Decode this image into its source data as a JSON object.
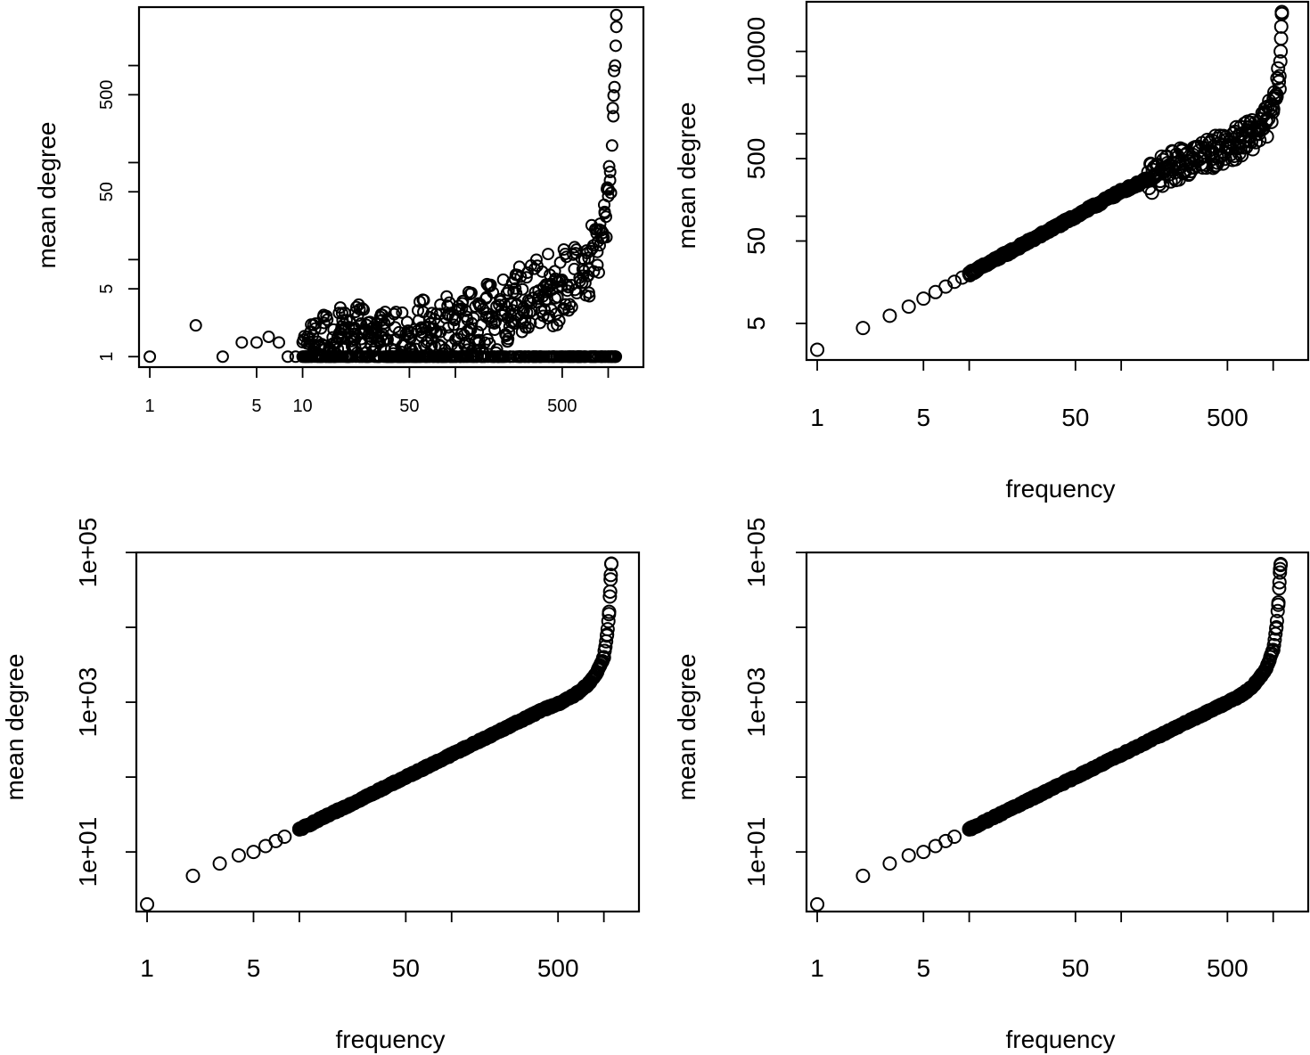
{
  "figure": {
    "layout": "2x2 grid"
  },
  "chart_data": [
    {
      "id": "top-left",
      "type": "scatter",
      "title": "",
      "xlabel": "",
      "ylabel": "mean degree",
      "x_scale": "log",
      "y_scale": "log",
      "xlim": [
        0.85,
        1700
      ],
      "ylim": [
        0.78,
        4000
      ],
      "x_ticks": [
        1,
        5,
        10,
        50,
        100,
        500,
        1000
      ],
      "x_tick_labels": [
        "1",
        "5",
        "10",
        "50",
        "",
        "500",
        ""
      ],
      "y_ticks": [
        1,
        5,
        10,
        50,
        100,
        500,
        1000
      ],
      "y_tick_labels": [
        "1",
        "5",
        "",
        "50",
        "",
        "500",
        ""
      ],
      "points": [
        [
          1,
          1
        ],
        [
          2,
          2.1
        ],
        [
          3,
          1
        ],
        [
          4,
          1.4
        ],
        [
          5,
          1.4
        ],
        [
          6,
          1.6
        ],
        [
          7,
          1.4
        ],
        [
          8,
          1
        ],
        [
          9,
          1
        ],
        [
          10,
          1
        ],
        [
          11,
          1
        ],
        [
          12,
          1.2
        ],
        [
          13,
          1
        ],
        [
          14,
          1.3
        ],
        [
          15,
          1
        ],
        [
          16,
          1
        ],
        [
          17,
          1.2
        ],
        [
          18,
          1.6
        ],
        [
          19,
          2
        ],
        [
          20,
          1
        ],
        [
          22,
          1.5
        ],
        [
          24,
          1.8
        ],
        [
          26,
          1.1
        ],
        [
          28,
          1.6
        ],
        [
          30,
          1
        ],
        [
          32,
          1.4
        ],
        [
          34,
          2
        ],
        [
          36,
          1.5
        ],
        [
          38,
          1.2
        ],
        [
          40,
          1.5
        ],
        [
          45,
          1.3
        ],
        [
          50,
          1.6
        ],
        [
          55,
          1.2
        ],
        [
          60,
          2
        ],
        [
          70,
          1.3
        ],
        [
          80,
          1.8
        ],
        [
          90,
          2
        ],
        [
          100,
          1.5
        ],
        [
          120,
          2.4
        ],
        [
          140,
          1.8
        ],
        [
          160,
          2.8
        ],
        [
          180,
          2.2
        ],
        [
          200,
          3
        ],
        [
          220,
          2.5
        ],
        [
          250,
          4.5
        ],
        [
          280,
          3.2
        ],
        [
          300,
          3.8
        ],
        [
          350,
          4.8
        ],
        [
          400,
          5.5
        ],
        [
          450,
          4
        ],
        [
          500,
          6
        ],
        [
          550,
          5.2
        ],
        [
          600,
          8
        ],
        [
          650,
          6.5
        ],
        [
          700,
          10
        ],
        [
          750,
          8
        ],
        [
          800,
          14
        ],
        [
          850,
          12
        ],
        [
          900,
          20
        ],
        [
          950,
          30
        ],
        [
          1000,
          45
        ],
        [
          1030,
          80
        ],
        [
          1060,
          150
        ],
        [
          1080,
          300
        ],
        [
          1100,
          600
        ],
        [
          1110,
          1000
        ],
        [
          1120,
          1600
        ],
        [
          1130,
          2500
        ]
      ]
    },
    {
      "id": "top-right",
      "type": "scatter",
      "title": "",
      "xlabel": "frequency",
      "ylabel": "mean degree",
      "x_scale": "log",
      "y_scale": "log",
      "xlim": [
        0.85,
        1700
      ],
      "ylim": [
        1.8,
        40000
      ],
      "x_ticks": [
        1,
        5,
        10,
        50,
        100,
        500,
        1000
      ],
      "x_tick_labels": [
        "1",
        "5",
        "",
        "50",
        "",
        "500",
        ""
      ],
      "y_ticks": [
        5,
        50,
        100,
        500,
        1000,
        5000,
        10000
      ],
      "y_tick_labels": [
        "5",
        "50",
        "",
        "500",
        "",
        "",
        "10000"
      ],
      "points": [
        [
          1,
          2.4
        ],
        [
          2,
          4.4
        ],
        [
          3,
          6.2
        ],
        [
          4,
          8
        ],
        [
          5,
          10
        ],
        [
          6,
          12
        ],
        [
          7,
          14
        ],
        [
          8,
          16
        ],
        [
          9,
          18
        ],
        [
          10,
          20
        ],
        [
          12,
          24
        ],
        [
          15,
          30
        ],
        [
          20,
          40
        ],
        [
          30,
          60
        ],
        [
          50,
          100
        ],
        [
          70,
          140
        ],
        [
          100,
          200
        ],
        [
          150,
          280
        ],
        [
          200,
          380
        ],
        [
          300,
          500
        ],
        [
          400,
          600
        ],
        [
          500,
          700
        ],
        [
          600,
          800
        ],
        [
          700,
          950
        ],
        [
          800,
          1100
        ],
        [
          900,
          1400
        ],
        [
          1000,
          2000
        ],
        [
          1050,
          3000
        ],
        [
          1100,
          5000
        ],
        [
          1120,
          10000
        ],
        [
          1130,
          20000
        ],
        [
          1140,
          30000
        ]
      ]
    },
    {
      "id": "bottom-left",
      "type": "scatter",
      "title": "",
      "xlabel": "frequency",
      "ylabel": "mean degree",
      "x_scale": "log",
      "y_scale": "log",
      "xlim": [
        0.85,
        1700
      ],
      "ylim": [
        1.6,
        100000
      ],
      "x_ticks": [
        1,
        5,
        10,
        50,
        100,
        500,
        1000
      ],
      "x_tick_labels": [
        "1",
        "5",
        "",
        "50",
        "",
        "500",
        ""
      ],
      "y_ticks": [
        10,
        100,
        1000,
        10000,
        100000
      ],
      "y_tick_labels": [
        "1e+01",
        "",
        "1e+03",
        "",
        "1e+05"
      ],
      "points": [
        [
          1,
          2
        ],
        [
          2,
          4.8
        ],
        [
          3,
          7
        ],
        [
          4,
          9
        ],
        [
          5,
          10
        ],
        [
          6,
          12
        ],
        [
          7,
          14
        ],
        [
          8,
          16
        ],
        [
          10,
          20
        ],
        [
          15,
          30
        ],
        [
          20,
          40
        ],
        [
          30,
          60
        ],
        [
          50,
          100
        ],
        [
          70,
          140
        ],
        [
          100,
          200
        ],
        [
          150,
          300
        ],
        [
          200,
          400
        ],
        [
          300,
          600
        ],
        [
          400,
          800
        ],
        [
          500,
          950
        ],
        [
          600,
          1150
        ],
        [
          700,
          1400
        ],
        [
          800,
          1800
        ],
        [
          900,
          2500
        ],
        [
          1000,
          4000
        ],
        [
          1050,
          8000
        ],
        [
          1080,
          15000
        ],
        [
          1100,
          30000
        ],
        [
          1110,
          50000
        ],
        [
          1120,
          70000
        ]
      ]
    },
    {
      "id": "bottom-right",
      "type": "scatter",
      "title": "",
      "xlabel": "frequency",
      "ylabel": "mean degree",
      "x_scale": "log",
      "y_scale": "log",
      "xlim": [
        0.85,
        1700
      ],
      "ylim": [
        1.6,
        100000
      ],
      "x_ticks": [
        1,
        5,
        10,
        50,
        100,
        500,
        1000
      ],
      "x_tick_labels": [
        "1",
        "5",
        "",
        "50",
        "",
        "500",
        ""
      ],
      "y_ticks": [
        10,
        100,
        1000,
        10000,
        100000
      ],
      "y_tick_labels": [
        "1e+01",
        "",
        "1e+03",
        "",
        "1e+05"
      ],
      "points": [
        [
          1,
          2
        ],
        [
          2,
          4.8
        ],
        [
          3,
          7
        ],
        [
          4,
          9
        ],
        [
          5,
          10
        ],
        [
          6,
          12
        ],
        [
          7,
          14
        ],
        [
          8,
          16
        ],
        [
          10,
          20
        ],
        [
          15,
          30
        ],
        [
          20,
          40
        ],
        [
          30,
          60
        ],
        [
          50,
          100
        ],
        [
          70,
          140
        ],
        [
          100,
          200
        ],
        [
          150,
          300
        ],
        [
          200,
          400
        ],
        [
          300,
          600
        ],
        [
          400,
          800
        ],
        [
          500,
          1000
        ],
        [
          600,
          1200
        ],
        [
          700,
          1500
        ],
        [
          800,
          2000
        ],
        [
          900,
          2800
        ],
        [
          1000,
          5000
        ],
        [
          1050,
          10000
        ],
        [
          1080,
          20000
        ],
        [
          1100,
          40000
        ],
        [
          1110,
          60000
        ],
        [
          1120,
          70000
        ]
      ]
    }
  ]
}
